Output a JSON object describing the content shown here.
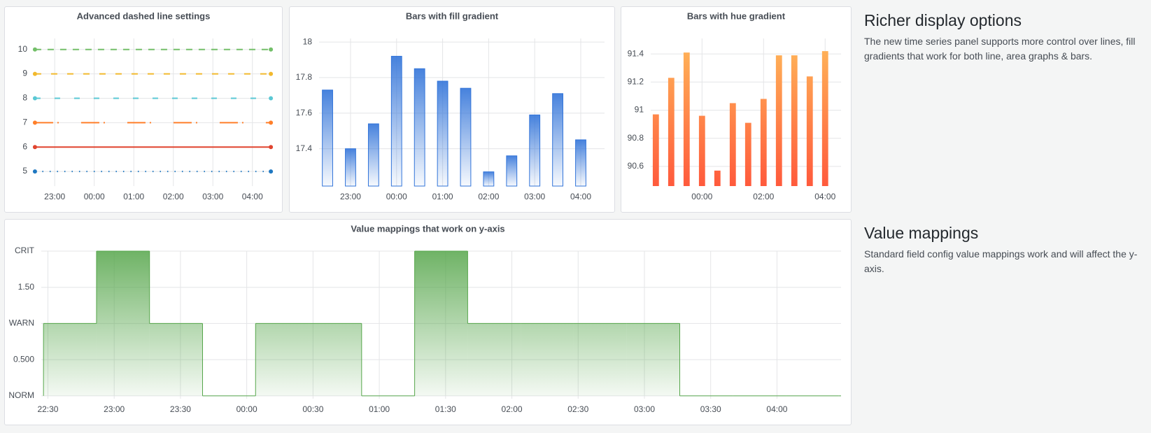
{
  "chart_data": [
    {
      "type": "line",
      "title": "Advanced dashed line settings",
      "x": [
        "22:30",
        "04:28"
      ],
      "xlim": [
        "22:29",
        "04:30"
      ],
      "xticks": [
        "23:00",
        "00:00",
        "01:00",
        "02:00",
        "03:00",
        "04:00"
      ],
      "ylim": [
        4.4,
        10.45
      ],
      "yticks": [
        5,
        6,
        7,
        8,
        9,
        10
      ],
      "grid": true,
      "series": [
        {
          "name": "10",
          "color": "#73bf69",
          "dash": "9,9",
          "values": [
            10,
            10
          ]
        },
        {
          "name": "9",
          "color": "#f2b92d",
          "dash": "9,14",
          "values": [
            9,
            9
          ]
        },
        {
          "name": "8",
          "color": "#5ac8d4",
          "dash": "8,20",
          "values": [
            8,
            8
          ]
        },
        {
          "name": "7",
          "color": "#ff7f2a",
          "dash": "26,6,2,32",
          "values": [
            7,
            7
          ]
        },
        {
          "name": "6",
          "color": "#e0442f",
          "dash": "none",
          "values": [
            6,
            6
          ]
        },
        {
          "name": "5",
          "color": "#1f78c1",
          "dash": "1.5,9",
          "values": [
            5,
            5
          ]
        }
      ]
    },
    {
      "type": "bar",
      "title": "Bars with fill gradient",
      "gradient_mode": "opacity",
      "color": "#3274d9",
      "x": [
        "22:30",
        "23:00",
        "23:30",
        "00:00",
        "00:30",
        "01:00",
        "01:30",
        "02:00",
        "02:30",
        "03:00",
        "03:30",
        "04:00"
      ],
      "values": [
        17.73,
        17.4,
        17.54,
        17.92,
        17.85,
        17.78,
        17.74,
        17.27,
        17.36,
        17.59,
        17.71,
        17.45
      ],
      "xlim": [
        "22:19",
        "04:31"
      ],
      "xticks": [
        "23:00",
        "00:00",
        "01:00",
        "02:00",
        "03:00",
        "04:00"
      ],
      "ylim": [
        17.19,
        18.02
      ],
      "yticks": [
        17.4,
        17.6,
        17.8,
        18
      ],
      "grid": true
    },
    {
      "type": "bar",
      "title": "Bars with hue gradient",
      "gradient_mode": "hue",
      "color": "#ff5a3c",
      "color_top": "#ffb85a",
      "x": [
        "22:30",
        "23:00",
        "23:30",
        "00:00",
        "00:30",
        "01:00",
        "01:30",
        "02:00",
        "02:30",
        "03:00",
        "03:30",
        "04:00"
      ],
      "values": [
        90.97,
        91.23,
        91.41,
        90.96,
        90.57,
        91.05,
        90.91,
        91.08,
        91.39,
        91.39,
        91.24,
        91.42
      ],
      "xlim": [
        "22:20",
        "04:31"
      ],
      "xticks": [
        "00:00",
        "02:00",
        "04:00"
      ],
      "ylim": [
        90.46,
        91.51
      ],
      "yticks": [
        90.6,
        90.8,
        91,
        91.2,
        91.4
      ],
      "grid": true
    },
    {
      "type": "step",
      "title": "Value mappings that work on y-axis",
      "color": "#56a64b",
      "x": [
        "22:28",
        "22:52",
        "23:16",
        "23:40",
        "00:04",
        "00:28",
        "00:52",
        "01:16",
        "01:40",
        "02:04",
        "02:28",
        "02:52",
        "03:16",
        "03:40",
        "04:04",
        "04:28"
      ],
      "values": [
        1,
        2,
        1,
        0,
        1,
        1,
        0,
        2,
        1,
        1,
        1,
        1,
        0,
        0,
        0,
        0
      ],
      "xlim": [
        "22:27",
        "04:29"
      ],
      "xticks": [
        "22:30",
        "23:00",
        "23:30",
        "00:00",
        "00:30",
        "01:00",
        "01:30",
        "02:00",
        "02:30",
        "03:00",
        "03:30",
        "04:00"
      ],
      "ylim": [
        -0.04,
        2
      ],
      "yticks": [
        {
          "value": 0,
          "label": "NORM"
        },
        {
          "value": 0.5,
          "label": "0.500"
        },
        {
          "value": 1,
          "label": "WARN"
        },
        {
          "value": 1.5,
          "label": "1.50"
        },
        {
          "value": 2,
          "label": "CRIT"
        }
      ],
      "grid": true
    }
  ],
  "text_panels": [
    {
      "title": "Richer display options",
      "text": "The new time series panel supports more control over lines, fill gradients that work for both line, area graphs & bars."
    },
    {
      "title": "Value mappings",
      "text": "Standard field config value mappings work and will affect the y-axis."
    }
  ]
}
